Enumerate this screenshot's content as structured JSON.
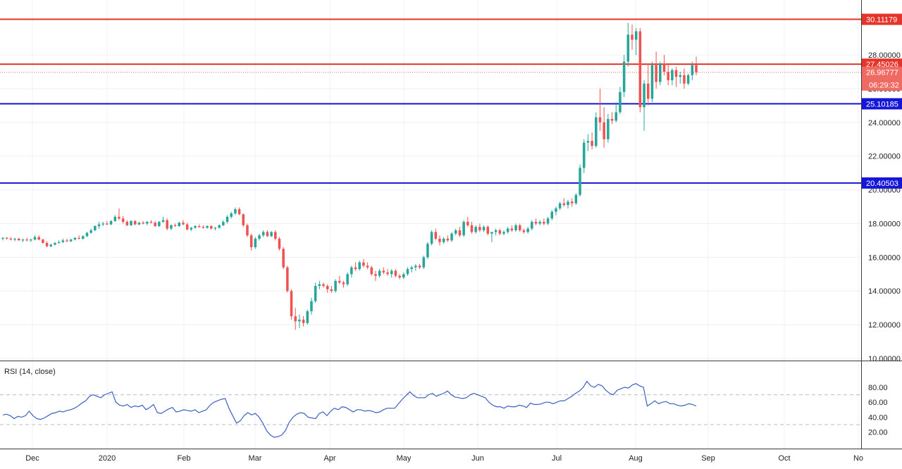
{
  "chart_data": [
    {
      "type": "candlestick",
      "panel": "price",
      "x_labels": [
        "Dec",
        "2020",
        "Feb",
        "Mar",
        "Apr",
        "May",
        "Jun",
        "Jul",
        "Aug",
        "Sep",
        "Oct",
        "No"
      ],
      "ylim": [
        10,
        31
      ],
      "y_ticks": [
        "10.00000",
        "12.00000",
        "14.00000",
        "16.00000",
        "18.00000",
        "20.00000",
        "22.00000",
        "24.00000",
        "26.00000",
        "28.00000"
      ],
      "grid": true,
      "horizontal_lines": [
        {
          "value": 30.11179,
          "label": "30.11179",
          "color": "#e5342a"
        },
        {
          "value": 27.45026,
          "label": "27.45026",
          "color": "#e5342a"
        },
        {
          "value": 25.10185,
          "label": "25.10185",
          "color": "#1616d8"
        },
        {
          "value": 20.40503,
          "label": "20.40503",
          "color": "#1616d8"
        }
      ],
      "current_price": {
        "value": 26.96777,
        "label": "26.96777",
        "countdown": "06:29:32",
        "color": "#ef6a62"
      },
      "up_color": "#26a69a",
      "down_color": "#ef5350",
      "candles": [
        [
          17.1,
          17.2,
          17.0,
          17.15
        ],
        [
          17.15,
          17.2,
          17.05,
          17.1
        ],
        [
          17.1,
          17.2,
          17.0,
          17.05
        ],
        [
          17.05,
          17.15,
          16.95,
          17.1
        ],
        [
          17.1,
          17.15,
          17.0,
          17.0
        ],
        [
          17.0,
          17.1,
          16.9,
          17.05
        ],
        [
          17.05,
          17.15,
          16.95,
          17.0
        ],
        [
          17.0,
          17.1,
          16.9,
          17.05
        ],
        [
          17.05,
          17.3,
          17.0,
          17.2
        ],
        [
          17.2,
          17.3,
          17.0,
          17.05
        ],
        [
          17.05,
          17.1,
          16.8,
          16.85
        ],
        [
          16.85,
          16.95,
          16.6,
          16.65
        ],
        [
          16.65,
          16.8,
          16.6,
          16.75
        ],
        [
          16.75,
          16.9,
          16.7,
          16.85
        ],
        [
          16.85,
          17.0,
          16.8,
          16.9
        ],
        [
          16.9,
          17.1,
          16.85,
          17.0
        ],
        [
          17.0,
          17.1,
          16.9,
          16.95
        ],
        [
          16.95,
          17.1,
          16.9,
          17.05
        ],
        [
          17.05,
          17.2,
          17.0,
          17.15
        ],
        [
          17.15,
          17.3,
          17.05,
          17.1
        ],
        [
          17.1,
          17.3,
          17.05,
          17.25
        ],
        [
          17.25,
          17.5,
          17.2,
          17.45
        ],
        [
          17.45,
          17.7,
          17.4,
          17.6
        ],
        [
          17.6,
          17.9,
          17.55,
          17.85
        ],
        [
          17.85,
          18.1,
          17.7,
          17.95
        ],
        [
          17.95,
          18.1,
          17.85,
          18.0
        ],
        [
          18.0,
          18.15,
          17.9,
          17.95
        ],
        [
          17.95,
          18.2,
          17.9,
          18.15
        ],
        [
          18.15,
          18.5,
          18.1,
          18.4
        ],
        [
          18.4,
          18.9,
          18.2,
          18.3
        ],
        [
          18.3,
          18.45,
          18.0,
          18.1
        ],
        [
          18.1,
          18.2,
          17.85,
          17.9
        ],
        [
          17.9,
          18.2,
          17.85,
          18.15
        ],
        [
          18.15,
          18.2,
          17.9,
          17.95
        ],
        [
          17.95,
          18.1,
          17.9,
          18.05
        ],
        [
          18.05,
          18.15,
          17.95,
          18.0
        ],
        [
          18.0,
          18.15,
          17.9,
          18.1
        ],
        [
          18.1,
          18.2,
          18.0,
          18.05
        ],
        [
          18.05,
          18.15,
          17.8,
          17.85
        ],
        [
          17.85,
          18.15,
          17.8,
          18.1
        ],
        [
          18.1,
          18.4,
          18.05,
          18.2
        ],
        [
          18.2,
          18.3,
          17.6,
          17.7
        ],
        [
          17.7,
          17.95,
          17.6,
          17.9
        ],
        [
          17.9,
          18.0,
          17.8,
          17.85
        ],
        [
          17.85,
          18.1,
          17.8,
          18.05
        ],
        [
          18.05,
          18.2,
          17.9,
          17.95
        ],
        [
          17.95,
          18.05,
          17.6,
          17.65
        ],
        [
          17.65,
          17.8,
          17.55,
          17.75
        ],
        [
          17.75,
          17.9,
          17.7,
          17.85
        ],
        [
          17.85,
          17.95,
          17.75,
          17.8
        ],
        [
          17.8,
          17.9,
          17.7,
          17.75
        ],
        [
          17.75,
          17.9,
          17.7,
          17.85
        ],
        [
          17.85,
          17.9,
          17.65,
          17.7
        ],
        [
          17.7,
          17.8,
          17.6,
          17.75
        ],
        [
          17.75,
          17.95,
          17.7,
          17.9
        ],
        [
          17.9,
          18.2,
          17.85,
          18.1
        ],
        [
          18.1,
          18.5,
          18.0,
          18.4
        ],
        [
          18.4,
          18.7,
          18.3,
          18.6
        ],
        [
          18.6,
          18.95,
          18.5,
          18.85
        ],
        [
          18.85,
          18.95,
          18.5,
          18.55
        ],
        [
          18.55,
          18.6,
          17.8,
          17.9
        ],
        [
          17.9,
          18.0,
          17.2,
          17.3
        ],
        [
          17.3,
          17.4,
          16.4,
          16.6
        ],
        [
          16.6,
          17.2,
          16.5,
          17.1
        ],
        [
          17.1,
          17.4,
          17.0,
          17.3
        ],
        [
          17.3,
          17.6,
          17.2,
          17.5
        ],
        [
          17.5,
          17.6,
          17.2,
          17.25
        ],
        [
          17.25,
          17.55,
          17.2,
          17.5
        ],
        [
          17.5,
          17.6,
          17.0,
          17.1
        ],
        [
          17.1,
          17.2,
          16.4,
          16.5
        ],
        [
          16.5,
          16.6,
          15.3,
          15.4
        ],
        [
          15.4,
          15.5,
          13.9,
          14.0
        ],
        [
          14.0,
          14.1,
          12.3,
          12.5
        ],
        [
          12.5,
          13.0,
          11.7,
          12.2
        ],
        [
          12.2,
          12.6,
          11.8,
          12.3
        ],
        [
          12.3,
          12.5,
          11.9,
          12.1
        ],
        [
          12.1,
          12.9,
          12.0,
          12.8
        ],
        [
          12.8,
          13.6,
          12.6,
          13.4
        ],
        [
          13.4,
          14.5,
          13.3,
          14.3
        ],
        [
          14.3,
          14.6,
          14.1,
          14.4
        ],
        [
          14.4,
          14.5,
          14.2,
          14.3
        ],
        [
          14.3,
          14.4,
          13.9,
          14.1
        ],
        [
          14.1,
          14.3,
          13.9,
          14.0
        ],
        [
          14.0,
          14.7,
          13.9,
          14.6
        ],
        [
          14.6,
          14.9,
          14.4,
          14.5
        ],
        [
          14.5,
          14.6,
          14.2,
          14.4
        ],
        [
          14.4,
          15.1,
          14.3,
          15.0
        ],
        [
          15.0,
          15.5,
          14.8,
          15.4
        ],
        [
          15.4,
          15.7,
          15.2,
          15.3
        ],
        [
          15.3,
          15.8,
          15.2,
          15.7
        ],
        [
          15.7,
          15.9,
          15.4,
          15.5
        ],
        [
          15.5,
          15.7,
          15.3,
          15.4
        ],
        [
          15.4,
          15.5,
          14.9,
          15.0
        ],
        [
          15.0,
          15.2,
          14.6,
          14.9
        ],
        [
          14.9,
          15.3,
          14.8,
          15.2
        ],
        [
          15.2,
          15.4,
          15.0,
          15.1
        ],
        [
          15.1,
          15.3,
          14.9,
          15.0
        ],
        [
          15.0,
          15.3,
          14.8,
          15.2
        ],
        [
          15.2,
          15.3,
          14.8,
          14.9
        ],
        [
          14.9,
          15.0,
          14.7,
          14.8
        ],
        [
          14.8,
          15.1,
          14.7,
          15.0
        ],
        [
          15.0,
          15.4,
          14.9,
          15.3
        ],
        [
          15.3,
          15.5,
          15.1,
          15.4
        ],
        [
          15.4,
          15.6,
          15.2,
          15.5
        ],
        [
          15.5,
          15.6,
          15.3,
          15.4
        ],
        [
          15.4,
          16.1,
          15.3,
          16.0
        ],
        [
          16.0,
          16.9,
          15.9,
          16.8
        ],
        [
          16.8,
          17.6,
          16.7,
          17.5
        ],
        [
          17.5,
          17.7,
          17.0,
          17.1
        ],
        [
          17.1,
          17.3,
          16.7,
          16.9
        ],
        [
          16.9,
          17.2,
          16.8,
          17.1
        ],
        [
          17.1,
          17.3,
          16.9,
          17.0
        ],
        [
          17.0,
          17.5,
          16.9,
          17.4
        ],
        [
          17.4,
          17.7,
          17.3,
          17.6
        ],
        [
          17.6,
          17.8,
          17.2,
          17.3
        ],
        [
          17.3,
          18.2,
          17.2,
          18.1
        ],
        [
          18.1,
          18.4,
          17.8,
          17.9
        ],
        [
          17.9,
          18.1,
          17.4,
          17.5
        ],
        [
          17.5,
          17.9,
          17.4,
          17.8
        ],
        [
          17.8,
          18.0,
          17.5,
          17.6
        ],
        [
          17.6,
          17.9,
          17.5,
          17.8
        ],
        [
          17.8,
          17.9,
          17.3,
          17.4
        ],
        [
          17.4,
          17.5,
          16.9,
          17.5
        ],
        [
          17.5,
          17.7,
          17.3,
          17.6
        ],
        [
          17.6,
          17.7,
          17.3,
          17.4
        ],
        [
          17.4,
          17.6,
          17.3,
          17.5
        ],
        [
          17.5,
          17.8,
          17.4,
          17.7
        ],
        [
          17.7,
          17.9,
          17.5,
          17.6
        ],
        [
          17.6,
          18.0,
          17.5,
          17.9
        ],
        [
          17.9,
          18.0,
          17.5,
          17.6
        ],
        [
          17.6,
          17.7,
          17.4,
          17.5
        ],
        [
          17.5,
          17.8,
          17.4,
          17.7
        ],
        [
          17.7,
          18.2,
          17.6,
          18.1
        ],
        [
          18.1,
          18.3,
          17.9,
          18.0
        ],
        [
          18.0,
          18.2,
          17.9,
          18.1
        ],
        [
          18.1,
          18.3,
          17.9,
          18.0
        ],
        [
          18.0,
          18.4,
          17.9,
          18.3
        ],
        [
          18.3,
          18.8,
          18.2,
          18.7
        ],
        [
          18.7,
          19.0,
          18.5,
          18.9
        ],
        [
          18.9,
          19.3,
          18.8,
          19.2
        ],
        [
          19.2,
          19.5,
          19.0,
          19.1
        ],
        [
          19.1,
          19.4,
          18.9,
          19.3
        ],
        [
          19.3,
          19.5,
          19.0,
          19.2
        ],
        [
          19.2,
          19.8,
          19.1,
          19.7
        ],
        [
          19.7,
          21.5,
          19.6,
          21.3
        ],
        [
          21.3,
          23.0,
          21.0,
          22.8
        ],
        [
          22.8,
          23.3,
          22.3,
          22.9
        ],
        [
          22.9,
          23.4,
          22.4,
          22.6
        ],
        [
          22.6,
          24.6,
          22.5,
          24.3
        ],
        [
          24.3,
          26.0,
          23.5,
          24.0
        ],
        [
          24.0,
          24.9,
          22.5,
          23.0
        ],
        [
          23.0,
          24.5,
          22.8,
          24.2
        ],
        [
          24.2,
          24.6,
          23.9,
          24.1
        ],
        [
          24.1,
          25.2,
          24.0,
          24.6
        ],
        [
          24.6,
          26.1,
          24.5,
          25.8
        ],
        [
          25.8,
          28.0,
          25.5,
          27.6
        ],
        [
          27.6,
          29.9,
          27.3,
          29.2
        ],
        [
          29.2,
          29.8,
          28.3,
          28.9
        ],
        [
          28.9,
          29.6,
          28.0,
          29.4
        ],
        [
          29.4,
          29.6,
          24.6,
          24.9
        ],
        [
          24.9,
          26.5,
          23.5,
          26.3
        ],
        [
          26.3,
          27.5,
          25.0,
          25.4
        ],
        [
          25.4,
          27.6,
          25.2,
          27.4
        ],
        [
          27.4,
          28.2,
          26.0,
          26.4
        ],
        [
          26.4,
          27.6,
          26.2,
          27.5
        ],
        [
          27.5,
          28.0,
          26.8,
          27.0
        ],
        [
          27.0,
          27.4,
          26.2,
          26.5
        ],
        [
          26.5,
          27.2,
          26.2,
          27.1
        ],
        [
          27.1,
          27.3,
          26.1,
          26.7
        ],
        [
          26.7,
          27.0,
          26.3,
          26.8
        ],
        [
          26.8,
          27.2,
          26.0,
          26.3
        ],
        [
          26.3,
          26.9,
          26.2,
          26.8
        ],
        [
          26.8,
          27.6,
          26.5,
          27.4
        ],
        [
          27.4,
          27.9,
          26.8,
          26.97
        ]
      ]
    },
    {
      "type": "line",
      "panel": "rsi",
      "title": "RSI (14, close)",
      "ylim": [
        10,
        95
      ],
      "y_ticks": [
        "20.00",
        "40.00",
        "60.00",
        "80.00"
      ],
      "bands": [
        30,
        70
      ],
      "color": "#3f5fc2",
      "values": [
        43,
        44,
        42,
        38,
        41,
        40,
        42,
        48,
        42,
        38,
        37,
        39,
        42,
        45,
        46,
        48,
        47,
        49,
        50,
        52,
        55,
        59,
        62,
        68,
        70,
        68,
        66,
        70,
        72,
        74,
        60,
        56,
        55,
        57,
        53,
        55,
        54,
        56,
        50,
        53,
        57,
        46,
        45,
        48,
        51,
        53,
        47,
        48,
        50,
        49,
        48,
        50,
        46,
        48,
        50,
        56,
        60,
        62,
        64,
        65,
        52,
        42,
        32,
        35,
        42,
        46,
        43,
        45,
        40,
        32,
        22,
        16,
        13,
        14,
        16,
        22,
        33,
        40,
        44,
        46,
        45,
        40,
        39,
        38,
        45,
        47,
        42,
        48,
        52,
        50,
        54,
        53,
        50,
        47,
        50,
        50,
        48,
        49,
        48,
        46,
        47,
        50,
        52,
        52,
        52,
        58,
        64,
        69,
        74,
        69,
        66,
        66,
        66,
        70,
        72,
        68,
        70,
        72,
        75,
        70,
        67,
        66,
        65,
        66,
        70,
        72,
        70,
        68,
        66,
        60,
        56,
        54,
        54,
        52,
        55,
        54,
        54,
        56,
        55,
        53,
        59,
        57,
        57,
        58,
        60,
        60,
        58,
        60,
        62,
        62,
        65,
        68,
        72,
        75,
        80,
        88,
        82,
        80,
        84,
        82,
        76,
        72,
        70,
        76,
        78,
        80,
        79,
        83,
        85,
        82,
        80,
        55,
        58,
        62,
        58,
        60,
        61,
        58,
        58,
        56,
        55,
        56,
        58,
        57,
        55
      ]
    }
  ]
}
